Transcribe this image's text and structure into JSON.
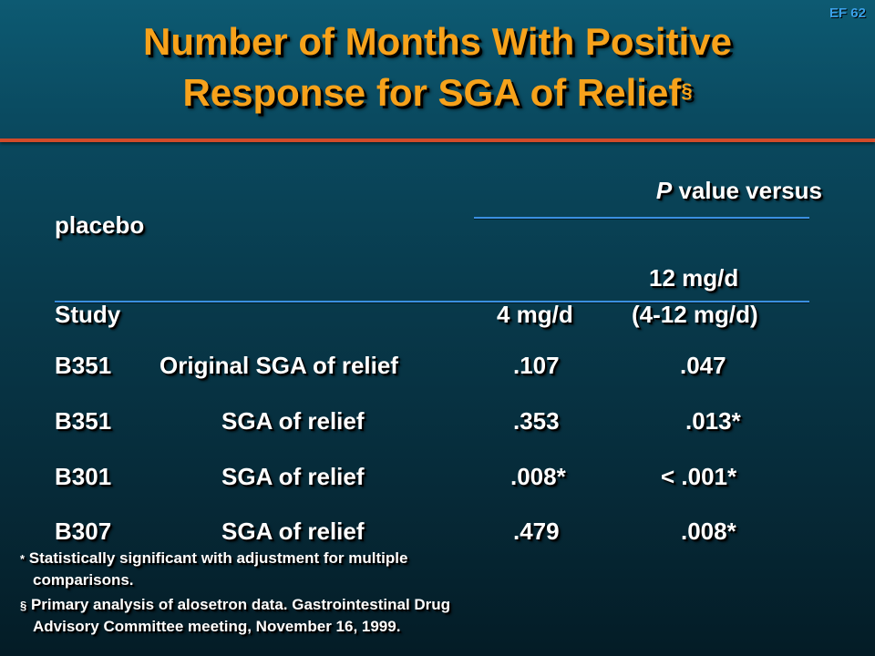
{
  "slide_code": "EF 62",
  "title": {
    "line1": "Number of Months With Positive",
    "line2": "Response for SGA of Relief",
    "marker": "§"
  },
  "header": {
    "p_value_label": "value versus",
    "p_italic": "P",
    "placebo": "placebo",
    "study": "Study",
    "col_4mg": "4 mg/d",
    "col_12mg_line1": "12 mg/d",
    "col_12mg_line2": "(4-12 mg/d)"
  },
  "rows": [
    {
      "study": "B351",
      "measure": "Original SGA of relief",
      "p_4mg": ".107",
      "p_12mg": ".047"
    },
    {
      "study": "B351",
      "measure": "SGA of relief",
      "p_4mg": ".353",
      "p_12mg": ".013*"
    },
    {
      "study": "B301",
      "measure": "SGA of relief",
      "p_4mg": ".008*",
      "p_12mg": "< .001*"
    },
    {
      "study": "B307",
      "measure": "SGA of relief",
      "p_4mg": ".479",
      "p_12mg": ".008*"
    }
  ],
  "footnotes": [
    {
      "mark": "*",
      "line1": "Statistically significant with adjustment for multiple",
      "line2": "comparisons."
    },
    {
      "mark": "§",
      "line1": "Primary analysis of alosetron data. Gastrointestinal Drug",
      "line2": "Advisory Committee meeting, November 16, 1999."
    }
  ]
}
